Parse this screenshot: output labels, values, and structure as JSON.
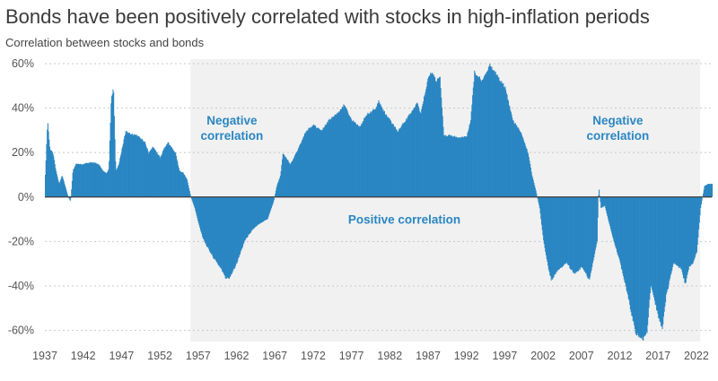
{
  "chart_data": {
    "type": "area",
    "title": "Bonds have been positively correlated with stocks in high-inflation periods",
    "subtitle": "Correlation between stocks and bonds",
    "xlim": [
      1937,
      2024
    ],
    "ylim": [
      -0.65,
      0.62
    ],
    "y_ticks": [
      0.6,
      0.4,
      0.2,
      0,
      -0.2,
      -0.4,
      -0.6
    ],
    "y_tick_labels": [
      "60%",
      "40%",
      "20%",
      "0%",
      "-20%",
      "-40%",
      "-60%"
    ],
    "x_ticks": [
      1937,
      1942,
      1947,
      1952,
      1957,
      1962,
      1967,
      1972,
      1977,
      1982,
      1987,
      1992,
      1997,
      2002,
      2007,
      2012,
      2017,
      2022
    ],
    "x_tick_labels": [
      "1937",
      "1942",
      "1947",
      "1952",
      "1957",
      "1962",
      "1967",
      "1972",
      "1977",
      "1982",
      "1987",
      "1992",
      "1997",
      "2002",
      "2007",
      "2012",
      "2017",
      "2022"
    ],
    "shaded_regions": [
      {
        "start": 1956.0,
        "end": 1966.8,
        "label_lines": [
          "Negative",
          "correlation"
        ]
      },
      {
        "start": 1966.8,
        "end": 2001.0,
        "label_lines": [
          "Positive correlation"
        ]
      },
      {
        "start": 2001.0,
        "end": 2022.5,
        "label_lines": [
          "Negative",
          "correlation"
        ]
      }
    ],
    "series": [
      {
        "name": "Correlation between stocks and bonds",
        "color": "#2a86c2",
        "points": [
          [
            1937.0,
            0.1
          ],
          [
            1937.3,
            0.35
          ],
          [
            1937.6,
            0.22
          ],
          [
            1938.0,
            0.2
          ],
          [
            1938.4,
            0.12
          ],
          [
            1938.8,
            0.06
          ],
          [
            1939.2,
            0.1
          ],
          [
            1939.6,
            0.05
          ],
          [
            1940.0,
            0.0
          ],
          [
            1940.3,
            -0.02
          ],
          [
            1940.6,
            0.12
          ],
          [
            1941.0,
            0.15
          ],
          [
            1942.0,
            0.15
          ],
          [
            1943.0,
            0.16
          ],
          [
            1944.0,
            0.15
          ],
          [
            1944.5,
            0.12
          ],
          [
            1945.0,
            0.11
          ],
          [
            1945.3,
            0.13
          ],
          [
            1945.6,
            0.45
          ],
          [
            1945.9,
            0.5
          ],
          [
            1946.2,
            0.12
          ],
          [
            1946.6,
            0.15
          ],
          [
            1947.0,
            0.22
          ],
          [
            1947.5,
            0.3
          ],
          [
            1948.0,
            0.29
          ],
          [
            1949.0,
            0.28
          ],
          [
            1950.0,
            0.25
          ],
          [
            1950.5,
            0.2
          ],
          [
            1951.0,
            0.23
          ],
          [
            1952.0,
            0.18
          ],
          [
            1952.5,
            0.22
          ],
          [
            1953.0,
            0.25
          ],
          [
            1954.0,
            0.2
          ],
          [
            1954.5,
            0.12
          ],
          [
            1955.0,
            0.11
          ],
          [
            1955.5,
            0.08
          ],
          [
            1956.0,
            0.0
          ],
          [
            1956.5,
            -0.05
          ],
          [
            1957.0,
            -0.12
          ],
          [
            1957.5,
            -0.18
          ],
          [
            1958.0,
            -0.22
          ],
          [
            1959.0,
            -0.28
          ],
          [
            1960.0,
            -0.33
          ],
          [
            1960.5,
            -0.37
          ],
          [
            1961.0,
            -0.37
          ],
          [
            1962.0,
            -0.3
          ],
          [
            1963.0,
            -0.2
          ],
          [
            1964.0,
            -0.15
          ],
          [
            1965.0,
            -0.12
          ],
          [
            1966.0,
            -0.1
          ],
          [
            1966.8,
            -0.02
          ],
          [
            1967.2,
            0.05
          ],
          [
            1967.7,
            0.1
          ],
          [
            1968.0,
            0.2
          ],
          [
            1969.0,
            0.15
          ],
          [
            1970.0,
            0.22
          ],
          [
            1971.0,
            0.3
          ],
          [
            1972.0,
            0.33
          ],
          [
            1973.0,
            0.3
          ],
          [
            1974.0,
            0.35
          ],
          [
            1975.0,
            0.38
          ],
          [
            1976.0,
            0.42
          ],
          [
            1977.0,
            0.35
          ],
          [
            1978.0,
            0.32
          ],
          [
            1979.0,
            0.38
          ],
          [
            1980.0,
            0.4
          ],
          [
            1980.5,
            0.44
          ],
          [
            1981.0,
            0.4
          ],
          [
            1982.0,
            0.35
          ],
          [
            1983.0,
            0.3
          ],
          [
            1984.0,
            0.35
          ],
          [
            1985.0,
            0.4
          ],
          [
            1985.5,
            0.43
          ],
          [
            1986.0,
            0.38
          ],
          [
            1986.5,
            0.47
          ],
          [
            1987.0,
            0.55
          ],
          [
            1987.5,
            0.57
          ],
          [
            1988.0,
            0.53
          ],
          [
            1988.5,
            0.55
          ],
          [
            1989.0,
            0.28
          ],
          [
            1990.0,
            0.28
          ],
          [
            1991.0,
            0.27
          ],
          [
            1992.0,
            0.28
          ],
          [
            1992.5,
            0.35
          ],
          [
            1993.0,
            0.57
          ],
          [
            1994.0,
            0.53
          ],
          [
            1995.0,
            0.6
          ],
          [
            1995.5,
            0.58
          ],
          [
            1996.0,
            0.55
          ],
          [
            1997.0,
            0.5
          ],
          [
            1998.0,
            0.35
          ],
          [
            1999.0,
            0.3
          ],
          [
            1999.5,
            0.25
          ],
          [
            2000.0,
            0.2
          ],
          [
            2000.5,
            0.1
          ],
          [
            2001.0,
            0.03
          ],
          [
            2001.5,
            -0.05
          ],
          [
            2002.0,
            -0.2
          ],
          [
            2002.5,
            -0.3
          ],
          [
            2003.0,
            -0.38
          ],
          [
            2004.0,
            -0.33
          ],
          [
            2005.0,
            -0.3
          ],
          [
            2006.0,
            -0.35
          ],
          [
            2007.0,
            -0.32
          ],
          [
            2008.0,
            -0.38
          ],
          [
            2009.0,
            -0.2
          ],
          [
            2009.2,
            0.05
          ],
          [
            2009.5,
            -0.05
          ],
          [
            2010.0,
            -0.04
          ],
          [
            2011.0,
            -0.18
          ],
          [
            2012.0,
            -0.3
          ],
          [
            2013.0,
            -0.45
          ],
          [
            2014.0,
            -0.62
          ],
          [
            2015.0,
            -0.65
          ],
          [
            2015.5,
            -0.62
          ],
          [
            2016.0,
            -0.4
          ],
          [
            2017.0,
            -0.55
          ],
          [
            2017.5,
            -0.6
          ],
          [
            2018.0,
            -0.45
          ],
          [
            2019.0,
            -0.3
          ],
          [
            2020.0,
            -0.33
          ],
          [
            2020.5,
            -0.4
          ],
          [
            2021.0,
            -0.32
          ],
          [
            2021.5,
            -0.3
          ],
          [
            2022.0,
            -0.25
          ],
          [
            2022.5,
            -0.05
          ],
          [
            2023.0,
            0.05
          ],
          [
            2023.5,
            0.06
          ],
          [
            2024.0,
            0.06
          ]
        ]
      }
    ]
  }
}
